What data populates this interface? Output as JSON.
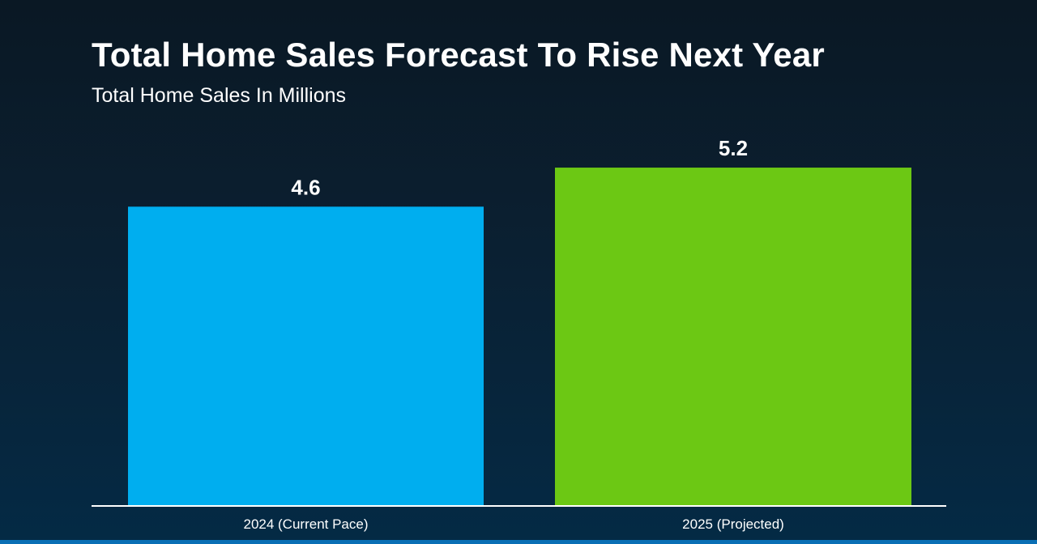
{
  "chart_data": {
    "type": "bar",
    "title": "Total Home Sales Forecast To Rise Next Year",
    "subtitle": "Total Home Sales In Millions",
    "categories": [
      "2024 (Current Pace)",
      "2025 (Projected)"
    ],
    "values": [
      4.6,
      5.2
    ],
    "data_labels": [
      "4.6",
      "5.2"
    ],
    "colors": [
      "#00aeef",
      "#6cc814"
    ],
    "xlabel": "",
    "ylabel": "",
    "ylim": [
      0,
      5.91
    ],
    "grid": false,
    "legend": "none"
  }
}
